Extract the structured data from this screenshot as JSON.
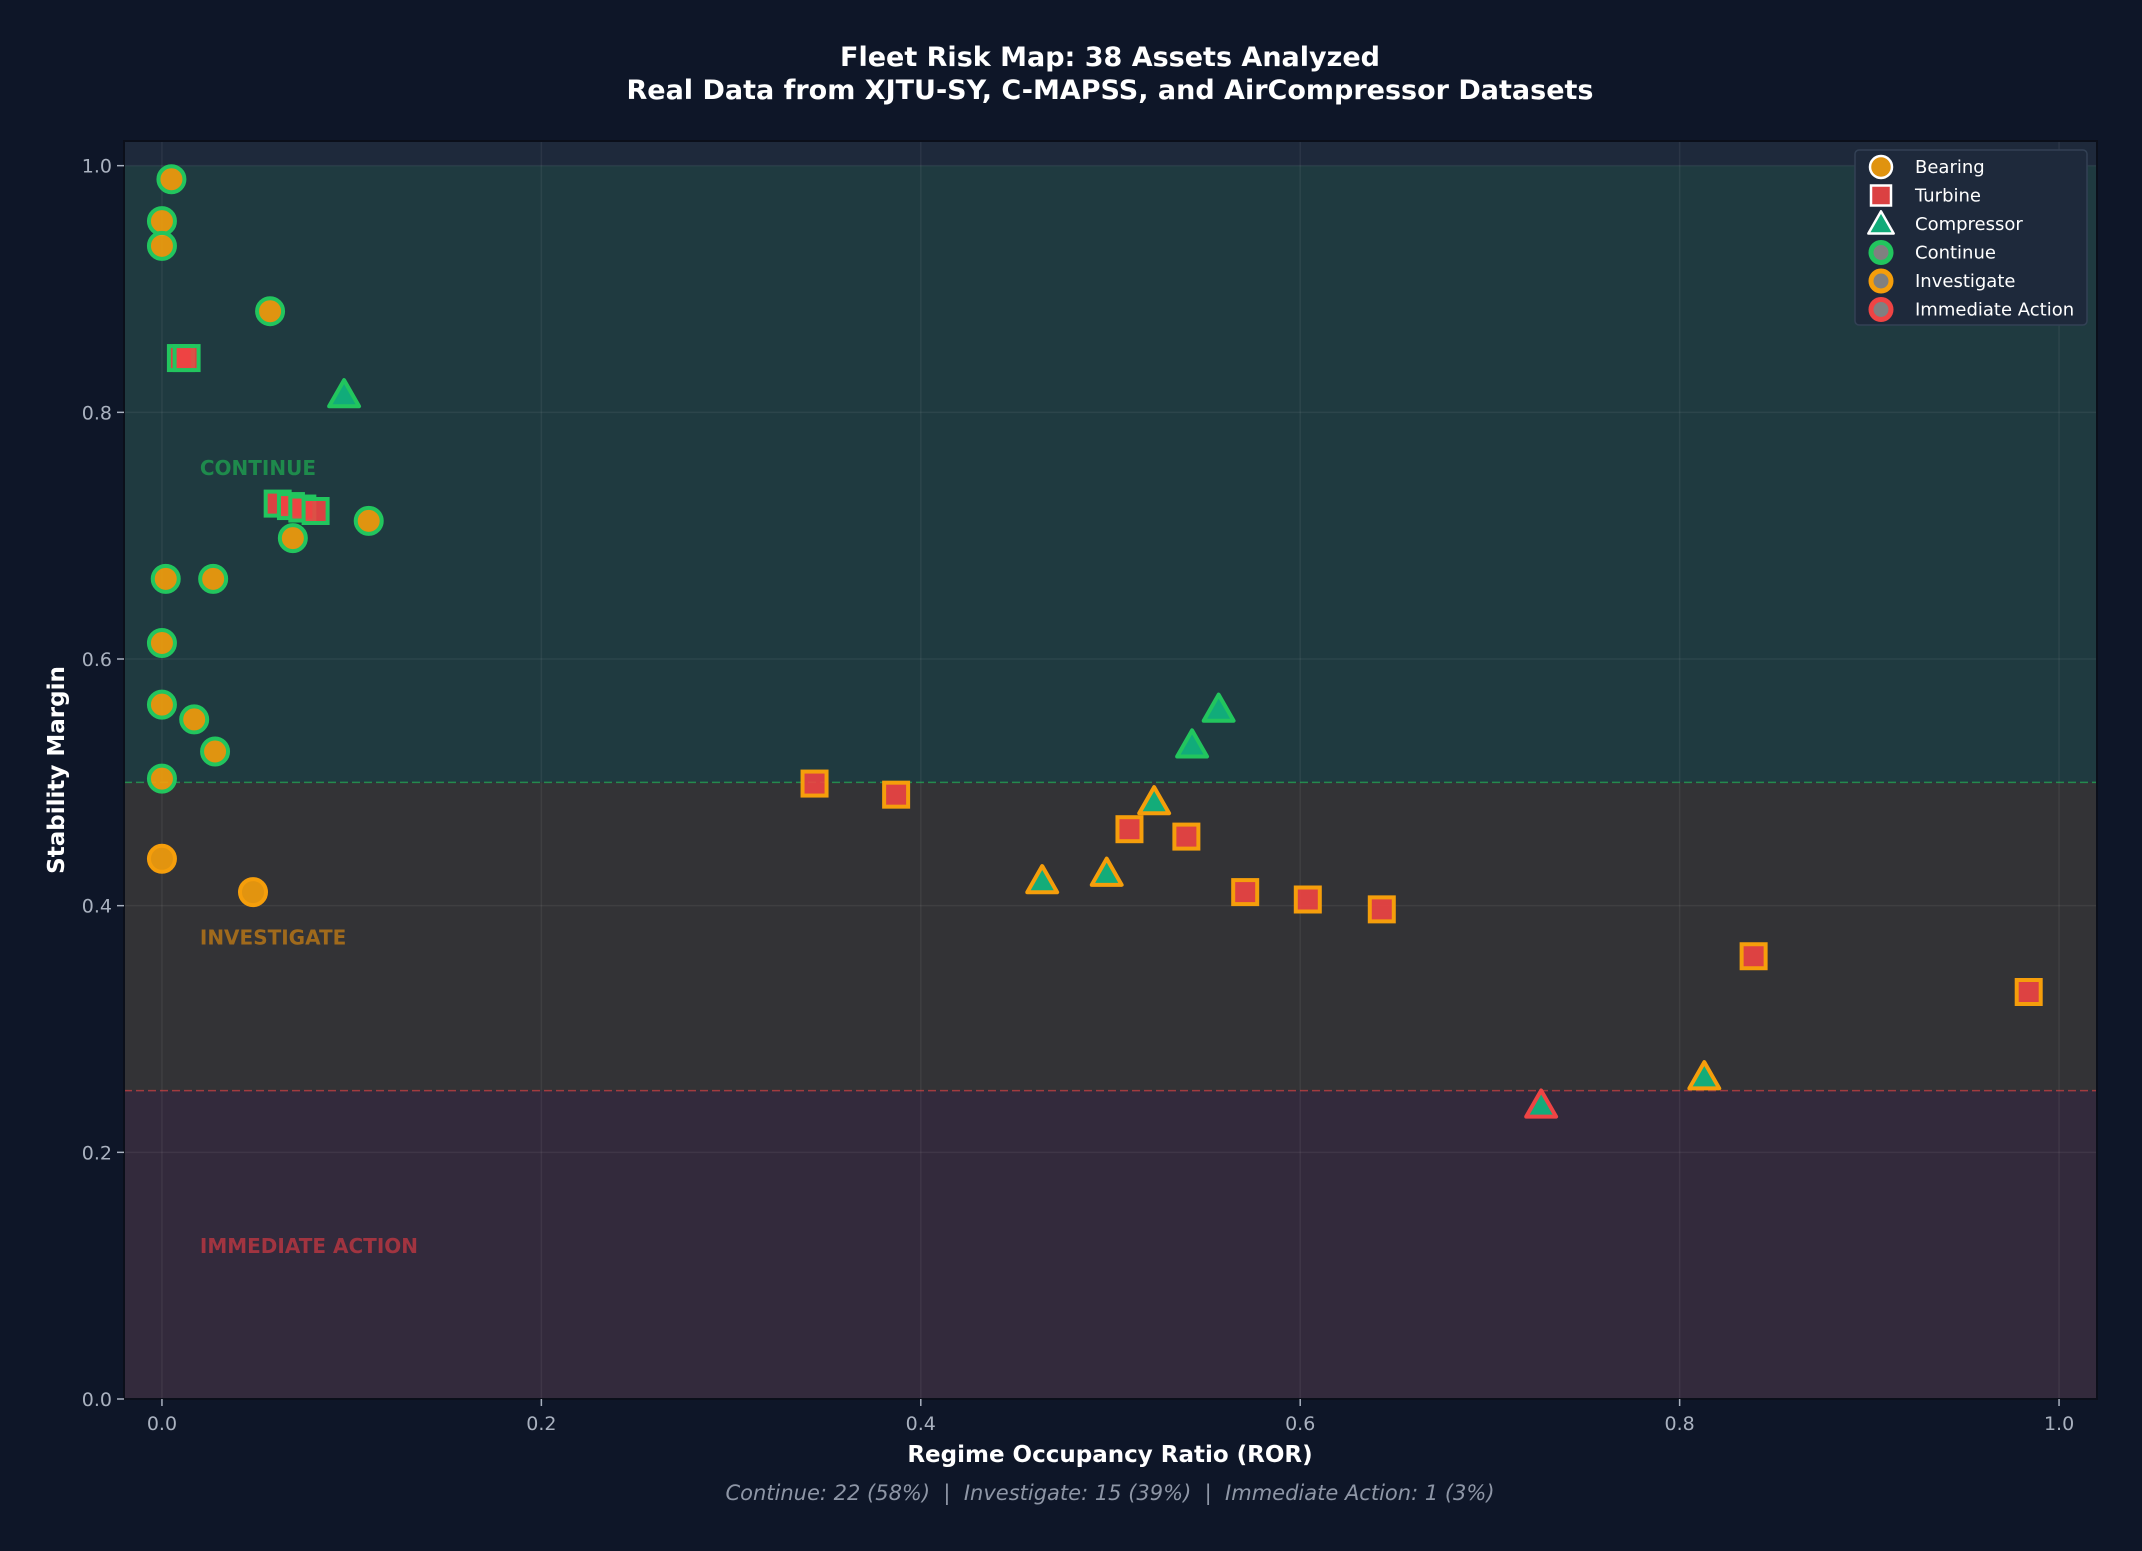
{
  "chart_data": {
    "type": "scatter",
    "title": "Fleet Risk Map: 38 Assets Analyzed",
    "subtitle": "Real Data from XJTU-SY, C-MAPSS, and AirCompressor Datasets",
    "xlabel": "Regime Occupancy Ratio (ROR)",
    "ylabel": "Stability Margin",
    "xlim": [
      -0.02,
      1.02
    ],
    "ylim": [
      0,
      1.02
    ],
    "xticks": [
      "0.0",
      "0.2",
      "0.4",
      "0.6",
      "0.8",
      "1.0"
    ],
    "yticks": [
      "0.0",
      "0.2",
      "0.4",
      "0.6",
      "0.8",
      "1.0"
    ],
    "grid": true,
    "legend_placement": "top-right",
    "thresholds": {
      "continue": 0.5,
      "immediate_action": 0.25
    },
    "zones": [
      {
        "label": "CONTINUE",
        "from": 0.5,
        "to": 1.0,
        "fill": "#1f3a40",
        "text_color": "#1e8a4c"
      },
      {
        "label": "INVESTIGATE",
        "from": 0.25,
        "to": 0.5,
        "fill": "#333336",
        "text_color": "#a06a1c"
      },
      {
        "label": "IMMEDIATE ACTION",
        "from": 0,
        "to": 0.25,
        "fill": "#332a3c",
        "text_color": "#a13440"
      }
    ],
    "type_colors": {
      "Bearing": "#f59e0b",
      "Turbine": "#ef4444",
      "Compressor": "#10b981"
    },
    "status_colors": {
      "Continue": "#22c55e",
      "Investigate": "#f59e0b",
      "Immediate Action": "#ef4444"
    },
    "legend": [
      "Bearing",
      "Turbine",
      "Compressor",
      "Continue",
      "Investigate",
      "Immediate Action"
    ],
    "points": [
      {
        "x": 0.005,
        "y": 0.989,
        "type": "Bearing",
        "status": "Continue"
      },
      {
        "x": 0.0,
        "y": 0.955,
        "type": "Bearing",
        "status": "Continue"
      },
      {
        "x": 0.0,
        "y": 0.935,
        "type": "Bearing",
        "status": "Continue"
      },
      {
        "x": 0.057,
        "y": 0.882,
        "type": "Bearing",
        "status": "Continue"
      },
      {
        "x": 0.002,
        "y": 0.665,
        "type": "Bearing",
        "status": "Continue"
      },
      {
        "x": 0.027,
        "y": 0.665,
        "type": "Bearing",
        "status": "Continue"
      },
      {
        "x": 0.069,
        "y": 0.698,
        "type": "Bearing",
        "status": "Continue"
      },
      {
        "x": 0.109,
        "y": 0.712,
        "type": "Bearing",
        "status": "Continue"
      },
      {
        "x": 0.0,
        "y": 0.613,
        "type": "Bearing",
        "status": "Continue"
      },
      {
        "x": 0.0,
        "y": 0.563,
        "type": "Bearing",
        "status": "Continue"
      },
      {
        "x": 0.017,
        "y": 0.551,
        "type": "Bearing",
        "status": "Continue"
      },
      {
        "x": 0.028,
        "y": 0.525,
        "type": "Bearing",
        "status": "Continue"
      },
      {
        "x": 0.0,
        "y": 0.503,
        "type": "Bearing",
        "status": "Continue"
      },
      {
        "x": 0.01,
        "y": 0.844,
        "type": "Turbine",
        "status": "Continue"
      },
      {
        "x": 0.013,
        "y": 0.844,
        "type": "Turbine",
        "status": "Continue"
      },
      {
        "x": 0.061,
        "y": 0.726,
        "type": "Turbine",
        "status": "Continue"
      },
      {
        "x": 0.068,
        "y": 0.724,
        "type": "Turbine",
        "status": "Continue"
      },
      {
        "x": 0.074,
        "y": 0.722,
        "type": "Turbine",
        "status": "Continue"
      },
      {
        "x": 0.081,
        "y": 0.72,
        "type": "Turbine",
        "status": "Continue"
      },
      {
        "x": 0.096,
        "y": 0.814,
        "type": "Compressor",
        "status": "Continue"
      },
      {
        "x": 0.543,
        "y": 0.53,
        "type": "Compressor",
        "status": "Continue"
      },
      {
        "x": 0.557,
        "y": 0.559,
        "type": "Compressor",
        "status": "Continue"
      },
      {
        "x": 0.0,
        "y": 0.438,
        "type": "Bearing",
        "status": "Investigate"
      },
      {
        "x": 0.048,
        "y": 0.411,
        "type": "Bearing",
        "status": "Investigate"
      },
      {
        "x": 0.344,
        "y": 0.499,
        "type": "Turbine",
        "status": "Investigate"
      },
      {
        "x": 0.387,
        "y": 0.49,
        "type": "Turbine",
        "status": "Investigate"
      },
      {
        "x": 0.51,
        "y": 0.462,
        "type": "Turbine",
        "status": "Investigate"
      },
      {
        "x": 0.54,
        "y": 0.456,
        "type": "Turbine",
        "status": "Investigate"
      },
      {
        "x": 0.571,
        "y": 0.411,
        "type": "Turbine",
        "status": "Investigate"
      },
      {
        "x": 0.604,
        "y": 0.405,
        "type": "Turbine",
        "status": "Investigate"
      },
      {
        "x": 0.643,
        "y": 0.397,
        "type": "Turbine",
        "status": "Investigate"
      },
      {
        "x": 0.839,
        "y": 0.359,
        "type": "Turbine",
        "status": "Investigate"
      },
      {
        "x": 0.984,
        "y": 0.33,
        "type": "Turbine",
        "status": "Investigate"
      },
      {
        "x": 0.464,
        "y": 0.42,
        "type": "Compressor",
        "status": "Investigate"
      },
      {
        "x": 0.498,
        "y": 0.426,
        "type": "Compressor",
        "status": "Investigate"
      },
      {
        "x": 0.523,
        "y": 0.484,
        "type": "Compressor",
        "status": "Investigate"
      },
      {
        "x": 0.813,
        "y": 0.261,
        "type": "Compressor",
        "status": "Investigate"
      },
      {
        "x": 0.727,
        "y": 0.238,
        "type": "Compressor",
        "status": "Immediate Action"
      }
    ],
    "footer": "Continue: 22 (58%)  |  Investigate: 15 (39%)  |  Immediate Action: 1 (3%)"
  }
}
